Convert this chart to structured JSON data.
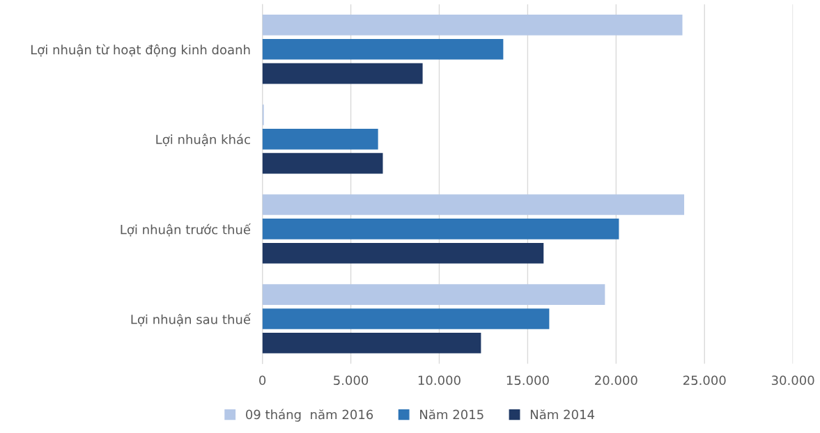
{
  "chart_data": {
    "type": "bar",
    "orientation": "horizontal",
    "categories": [
      "Lợi nhuận từ hoạt động kinh doanh",
      "Lợi nhuận khác",
      "Lợi nhuận trước thuế",
      "Lợi nhuận sau thuế"
    ],
    "series": [
      {
        "name": "09 tháng  năm 2016",
        "color": "#b4c7e7",
        "values": [
          23750,
          80,
          23850,
          19370
        ]
      },
      {
        "name": "Năm 2015",
        "color": "#2e75b6",
        "values": [
          13620,
          6540,
          20160,
          16220
        ]
      },
      {
        "name": "Năm 2014",
        "color": "#1f3864",
        "values": [
          9060,
          6810,
          15900,
          12360
        ]
      }
    ],
    "xlim": [
      0,
      30000
    ],
    "xticks": [
      {
        "value": 0,
        "label": "0"
      },
      {
        "value": 5000,
        "label": "5.000"
      },
      {
        "value": 10000,
        "label": "10.000"
      },
      {
        "value": 15000,
        "label": "15.000"
      },
      {
        "value": 20000,
        "label": "20.000"
      },
      {
        "value": 25000,
        "label": "25.000"
      },
      {
        "value": 30000,
        "label": "30.000"
      }
    ],
    "grid": "x",
    "legend": "bottom"
  }
}
